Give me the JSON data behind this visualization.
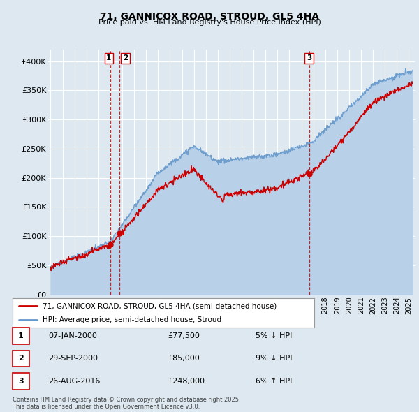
{
  "title": "71, GANNICOX ROAD, STROUD, GL5 4HA",
  "subtitle": "Price paid vs. HM Land Registry's House Price Index (HPI)",
  "ylim": [
    0,
    420000
  ],
  "yticks": [
    0,
    50000,
    100000,
    150000,
    200000,
    250000,
    300000,
    350000,
    400000
  ],
  "ytick_labels": [
    "£0",
    "£50K",
    "£100K",
    "£150K",
    "£200K",
    "£250K",
    "£300K",
    "£350K",
    "£400K"
  ],
  "background_color": "#dde8f0",
  "plot_bg_color": "#dde8f0",
  "grid_color": "#ffffff",
  "red_color": "#cc0000",
  "blue_color": "#6699cc",
  "blue_fill_color": "#b8d0e8",
  "transaction_markers": [
    {
      "label": "1",
      "date_x": 2000.03,
      "value": 77500
    },
    {
      "label": "2",
      "date_x": 2000.75,
      "value": 85000
    },
    {
      "label": "3",
      "date_x": 2016.65,
      "value": 248000
    }
  ],
  "table_rows": [
    {
      "num": "1",
      "date": "07-JAN-2000",
      "price": "£77,500",
      "pct": "5% ↓ HPI"
    },
    {
      "num": "2",
      "date": "29-SEP-2000",
      "price": "£85,000",
      "pct": "9% ↓ HPI"
    },
    {
      "num": "3",
      "date": "26-AUG-2016",
      "price": "£248,000",
      "pct": "6% ↑ HPI"
    }
  ],
  "legend_line1": "71, GANNICOX ROAD, STROUD, GL5 4HA (semi-detached house)",
  "legend_line2": "HPI: Average price, semi-detached house, Stroud",
  "footnote": "Contains HM Land Registry data © Crown copyright and database right 2025.\nThis data is licensed under the Open Government Licence v3.0.",
  "xmin": 1994.8,
  "xmax": 2025.5
}
